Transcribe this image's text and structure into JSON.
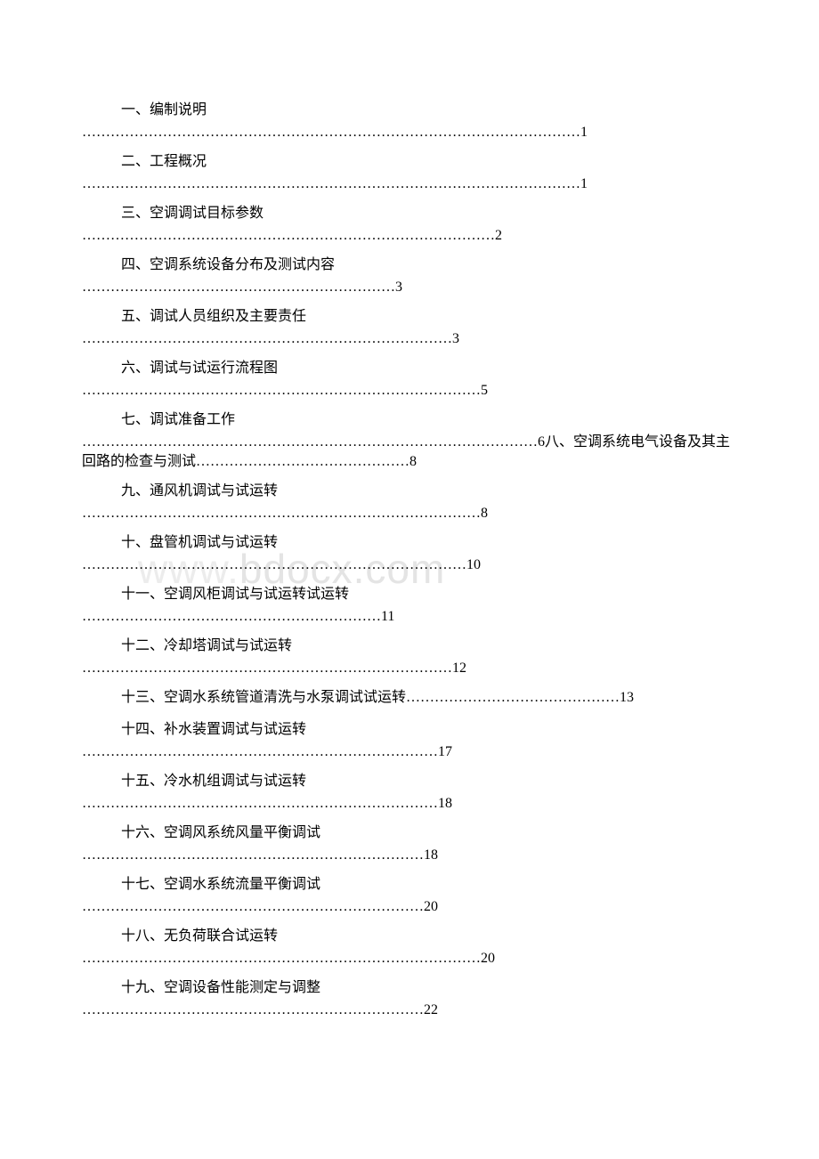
{
  "watermark": {
    "part1": "www.",
    "part2": "bdocx.com"
  },
  "entries": [
    {
      "title": "一、编制说明",
      "dots": "……………………………………………………………………………………………",
      "page": "1"
    },
    {
      "title": "二、工程概况",
      "dots": "……………………………………………………………………………………………",
      "page": "1"
    },
    {
      "title": "三、空调调试目标参数",
      "dots": "……………………………………………………………………………",
      "page": "2"
    },
    {
      "title": "四、空调系统设备分布及测试内容",
      "dots": "…………………………………………………………",
      "page": "3"
    },
    {
      "title": "五、调试人员组织及主要责任",
      "dots": "……………………………………………………………………",
      "page": "3"
    },
    {
      "title": "六、调试与试运行流程图",
      "dots": "…………………………………………………………………………",
      "page": "5"
    },
    {
      "title": "七、调试准备工作",
      "dots": "……………………………………………………………………………………",
      "page": "6",
      "suffix": "八、空调系统电气设备及其主回路的检查与测试………………………………………8"
    },
    {
      "title": "九、通风机调试与试运转",
      "dots": "…………………………………………………………………………",
      "page": "8"
    },
    {
      "title": "十、盘管机调试与试运转",
      "dots": "………………………………………………………………………",
      "page": "10"
    },
    {
      "title": "十一、空调风柜调试与试运转试运转",
      "dots": "………………………………………………………",
      "page": "11"
    },
    {
      "title": "十二、冷却塔调试与试运转",
      "dots": "……………………………………………………………………",
      "page": "12"
    },
    {
      "title": "十三、空调水系统管道清洗与水泵调试试运转………………………………………13",
      "inline": true
    },
    {
      "title": "十四、补水装置调试与试运转",
      "dots": "…………………………………………………………………",
      "page": "17"
    },
    {
      "title": "十五、冷水机组调试与试运转",
      "dots": "…………………………………………………………………",
      "page": "18"
    },
    {
      "title": "十六、空调风系统风量平衡调试",
      "dots": "………………………………………………………………",
      "page": "18"
    },
    {
      "title": "十七、空调水系统流量平衡调试",
      "dots": "………………………………………………………………",
      "page": "20"
    },
    {
      "title": "十八、无负荷联合试运转",
      "dots": "…………………………………………………………………………",
      "page": "20"
    },
    {
      "title": "十九、空调设备性能测定与调整",
      "dots": "………………………………………………………………",
      "page": "22"
    }
  ]
}
